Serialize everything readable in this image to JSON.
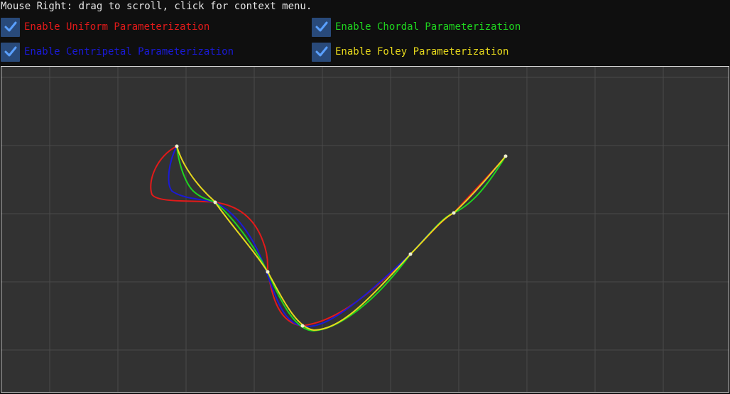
{
  "hint_text": "Mouse Right: drag to scroll, click for context menu.",
  "options": [
    {
      "label": "Enable Uniform Parameterization",
      "checked": true,
      "color": "#e21a1a"
    },
    {
      "label": "Enable Chordal Parameterization",
      "checked": true,
      "color": "#1fd41f"
    },
    {
      "label": "Enable Centripetal Parameterization",
      "checked": true,
      "color": "#1a1ad6"
    },
    {
      "label": "Enable Foley Parameterization",
      "checked": true,
      "color": "#e6d81c"
    }
  ],
  "colors": {
    "background": "#0f0f0f",
    "canvas": "#323232",
    "grid": "#4a4a4a",
    "checkbox": "#294a7a",
    "checkmark": "#5aa0ff",
    "point": "#f0f0d0"
  }
}
